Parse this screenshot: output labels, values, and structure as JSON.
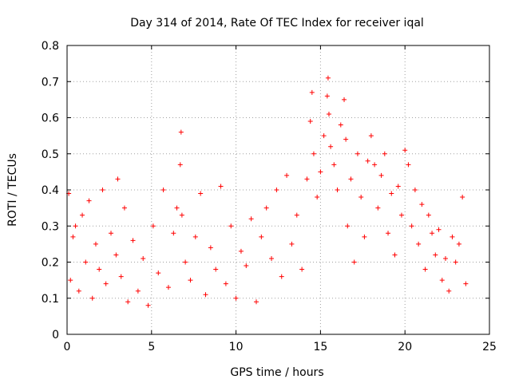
{
  "chart_data": {
    "type": "scatter",
    "title": "Day 314 of 2014, Rate Of TEC Index for receiver iqal",
    "xlabel": "GPS time / hours",
    "ylabel": "ROTI / TECUs",
    "xlim": [
      0,
      25
    ],
    "ylim": [
      0,
      0.8
    ],
    "xticks": [
      0,
      5,
      10,
      15,
      20,
      25
    ],
    "yticks": [
      0,
      0.1,
      0.2,
      0.3,
      0.4,
      0.5,
      0.6,
      0.7,
      0.8
    ],
    "xtick_labels": [
      "0",
      "5",
      "10",
      "15",
      "20",
      "25"
    ],
    "ytick_labels": [
      "0",
      "0.1",
      "0.2",
      "0.3",
      "0.4",
      "0.5",
      "0.6",
      "0.7",
      "0.8"
    ],
    "grid": true,
    "marker": "+",
    "marker_color": "#ff0000",
    "series": [
      {
        "name": "ROTI",
        "x": [
          0.1,
          0.2,
          0.35,
          0.5,
          0.7,
          0.9,
          1.1,
          1.3,
          1.5,
          1.7,
          1.9,
          2.1,
          2.3,
          2.6,
          2.9,
          3.0,
          3.2,
          3.4,
          3.6,
          3.9,
          4.2,
          4.5,
          4.8,
          5.1,
          5.4,
          5.7,
          6.0,
          6.3,
          6.5,
          6.7,
          6.75,
          6.8,
          7.0,
          7.3,
          7.6,
          7.9,
          8.2,
          8.5,
          8.8,
          9.1,
          9.4,
          9.7,
          10.0,
          10.3,
          10.6,
          10.9,
          11.2,
          11.5,
          11.8,
          12.1,
          12.4,
          12.7,
          13.0,
          13.3,
          13.6,
          13.9,
          14.2,
          14.4,
          14.5,
          14.6,
          14.8,
          15.0,
          15.2,
          15.4,
          15.45,
          15.5,
          15.6,
          15.8,
          16.0,
          16.2,
          16.4,
          16.5,
          16.6,
          16.8,
          17.0,
          17.2,
          17.4,
          17.6,
          17.8,
          18.0,
          18.2,
          18.4,
          18.6,
          18.8,
          19.0,
          19.2,
          19.4,
          19.6,
          19.8,
          20.0,
          20.2,
          20.4,
          20.6,
          20.8,
          21.0,
          21.2,
          21.4,
          21.6,
          21.8,
          22.0,
          22.2,
          22.4,
          22.6,
          22.8,
          23.0,
          23.2,
          23.4,
          23.6
        ],
        "y": [
          0.39,
          0.15,
          0.27,
          0.3,
          0.12,
          0.33,
          0.2,
          0.37,
          0.1,
          0.25,
          0.18,
          0.4,
          0.14,
          0.28,
          0.22,
          0.43,
          0.16,
          0.35,
          0.09,
          0.26,
          0.12,
          0.21,
          0.08,
          0.3,
          0.17,
          0.4,
          0.13,
          0.28,
          0.35,
          0.47,
          0.56,
          0.33,
          0.2,
          0.15,
          0.27,
          0.39,
          0.11,
          0.24,
          0.18,
          0.41,
          0.14,
          0.3,
          0.1,
          0.23,
          0.19,
          0.32,
          0.09,
          0.27,
          0.35,
          0.21,
          0.4,
          0.16,
          0.44,
          0.25,
          0.33,
          0.18,
          0.43,
          0.59,
          0.67,
          0.5,
          0.38,
          0.45,
          0.55,
          0.66,
          0.71,
          0.61,
          0.52,
          0.47,
          0.4,
          0.58,
          0.65,
          0.54,
          0.3,
          0.43,
          0.2,
          0.5,
          0.38,
          0.27,
          0.48,
          0.55,
          0.47,
          0.35,
          0.44,
          0.5,
          0.28,
          0.39,
          0.22,
          0.41,
          0.33,
          0.51,
          0.47,
          0.3,
          0.4,
          0.25,
          0.36,
          0.18,
          0.33,
          0.28,
          0.22,
          0.29,
          0.15,
          0.21,
          0.12,
          0.27,
          0.2,
          0.25,
          0.38,
          0.14
        ]
      }
    ]
  }
}
